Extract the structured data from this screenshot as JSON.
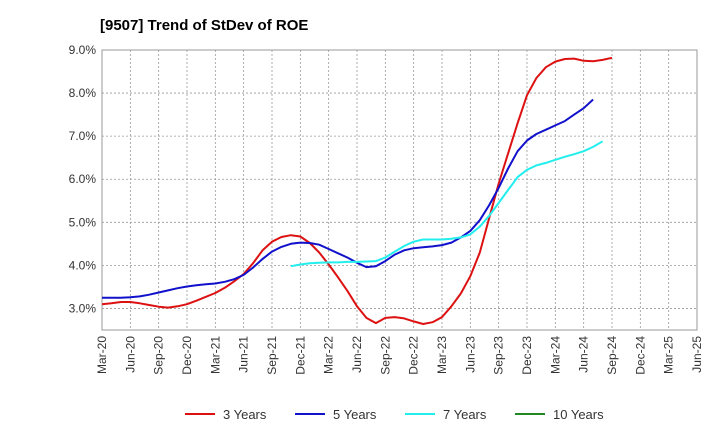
{
  "chart_data": {
    "type": "line",
    "title": "[9507]  Trend of StDev of ROE",
    "xlabel": "",
    "ylabel": "",
    "x_ticks": [
      "Mar-20",
      "Jun-20",
      "Sep-20",
      "Dec-20",
      "Mar-21",
      "Jun-21",
      "Sep-21",
      "Dec-21",
      "Mar-22",
      "Jun-22",
      "Sep-22",
      "Dec-22",
      "Mar-23",
      "Jun-23",
      "Sep-23",
      "Dec-23",
      "Mar-24",
      "Jun-24",
      "Sep-24",
      "Dec-24",
      "Mar-25",
      "Jun-25"
    ],
    "y_ticks": [
      "3.0%",
      "4.0%",
      "5.0%",
      "6.0%",
      "7.0%",
      "8.0%",
      "9.0%"
    ],
    "ylim": [
      2.5,
      9.0
    ],
    "grid": true,
    "legend_position": "bottom",
    "series": [
      {
        "name": "3 Years",
        "color": "#dd1111",
        "start_index": 0,
        "values": [
          3.1,
          3.12,
          3.15,
          3.15,
          3.12,
          3.08,
          3.04,
          3.02,
          3.05,
          3.1,
          3.18,
          3.27,
          3.36,
          3.48,
          3.63,
          3.8,
          4.05,
          4.35,
          4.55,
          4.66,
          4.7,
          4.67,
          4.52,
          4.3,
          4.02,
          3.72,
          3.4,
          3.05,
          2.78,
          2.66,
          2.78,
          2.8,
          2.77,
          2.7,
          2.64,
          2.68,
          2.8,
          3.05,
          3.35,
          3.75,
          4.3,
          5.1,
          5.9,
          6.6,
          7.3,
          7.95,
          8.35,
          8.6,
          8.73,
          8.79,
          8.8,
          8.75,
          8.74,
          8.77,
          8.82
        ]
      },
      {
        "name": "5 Years",
        "color": "#1111cc",
        "start_index": 0,
        "values": [
          3.25,
          3.25,
          3.25,
          3.26,
          3.28,
          3.32,
          3.37,
          3.42,
          3.47,
          3.51,
          3.54,
          3.56,
          3.58,
          3.62,
          3.68,
          3.78,
          3.95,
          4.15,
          4.32,
          4.43,
          4.5,
          4.53,
          4.52,
          4.48,
          4.38,
          4.28,
          4.18,
          4.06,
          3.96,
          3.98,
          4.1,
          4.25,
          4.35,
          4.4,
          4.42,
          4.44,
          4.47,
          4.53,
          4.65,
          4.8,
          5.05,
          5.4,
          5.8,
          6.25,
          6.65,
          6.9,
          7.05,
          7.15,
          7.25,
          7.35,
          7.5,
          7.65,
          7.85
        ]
      },
      {
        "name": "7 Years",
        "color": "#22eeee",
        "start_index": 20,
        "values": [
          3.98,
          4.02,
          4.05,
          4.06,
          4.07,
          4.07,
          4.08,
          4.08,
          4.09,
          4.1,
          4.18,
          4.32,
          4.45,
          4.55,
          4.6,
          4.6,
          4.6,
          4.62,
          4.65,
          4.72,
          4.9,
          5.15,
          5.45,
          5.75,
          6.05,
          6.22,
          6.32,
          6.38,
          6.45,
          6.52,
          6.58,
          6.65,
          6.75,
          6.88
        ]
      },
      {
        "name": "10 Years",
        "color": "#228822",
        "start_index": 0,
        "values": []
      }
    ]
  }
}
